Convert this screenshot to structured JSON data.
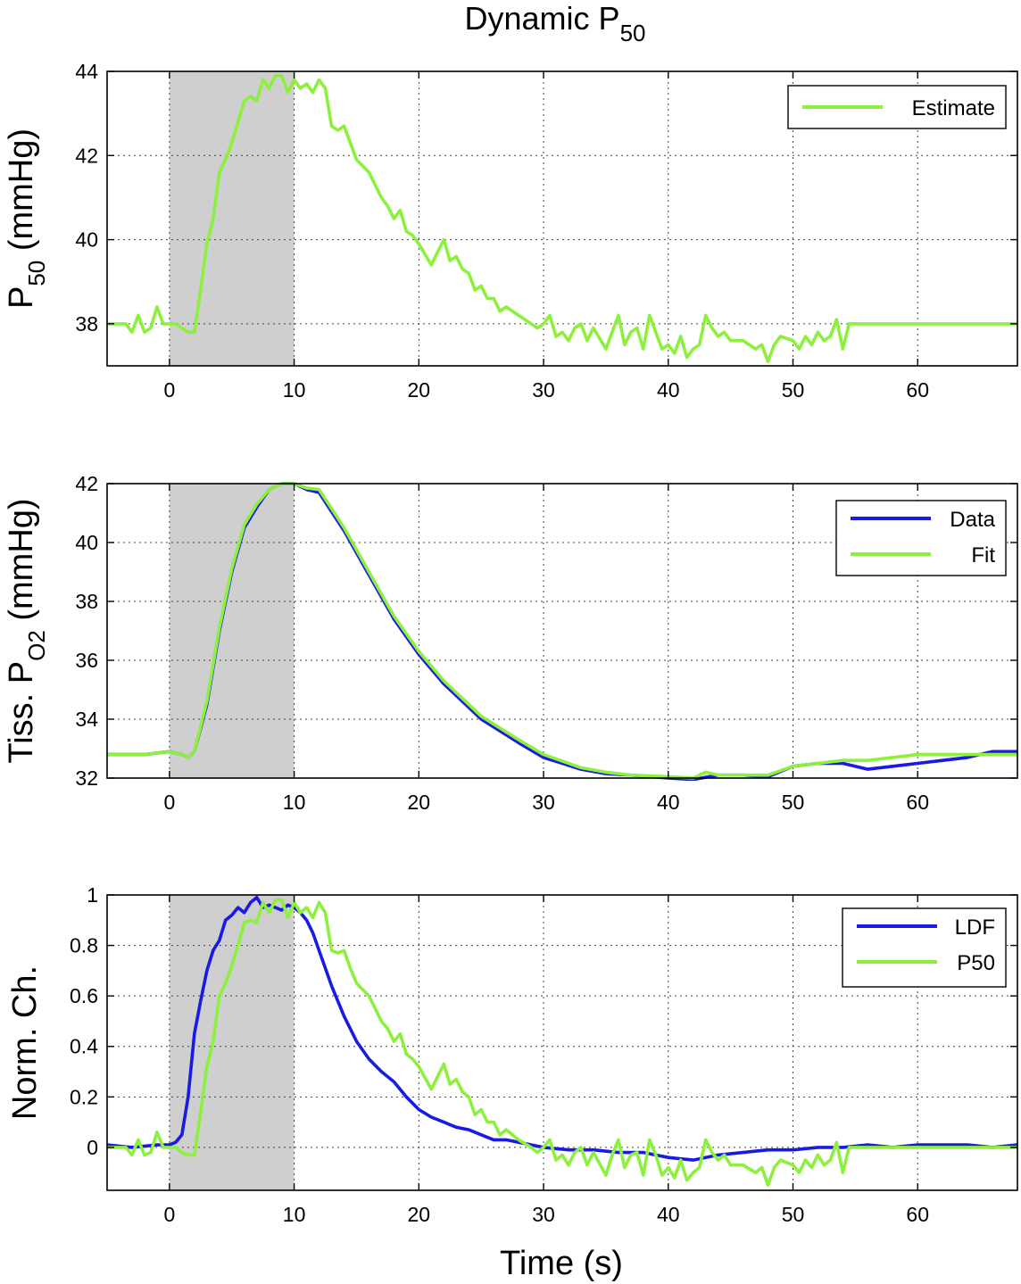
{
  "figure_title": {
    "main": "Dynamic P",
    "sub": "50"
  },
  "xlabel": "Time (s)",
  "colors": {
    "data_blue": "#1a1ae6",
    "estimate_green": "#8cf03c",
    "shade": "#cfcfcf"
  },
  "chart_data": [
    {
      "type": "line",
      "panel": "top",
      "ylabel": {
        "main": "P",
        "sub": "50",
        "rest": " (mmHg)"
      },
      "xlim": [
        -5,
        68
      ],
      "ylim": [
        37,
        44
      ],
      "xticks": [
        0,
        10,
        20,
        30,
        40,
        50,
        60
      ],
      "yticks": [
        38,
        40,
        42,
        44
      ],
      "grid": true,
      "shaded_interval": [
        0,
        10
      ],
      "legend_position": "top-right",
      "series": [
        {
          "name": "Estimate",
          "color": "#8cf03c",
          "x": [
            -5,
            -3.5,
            -3,
            -2.5,
            -2,
            -1.5,
            -1,
            -0.5,
            0,
            0.5,
            1,
            1.5,
            2,
            2.5,
            3,
            3.5,
            4,
            4.5,
            5,
            5.5,
            6,
            6.5,
            7,
            7.5,
            8,
            8.5,
            9,
            9.5,
            10,
            10.5,
            11,
            11.5,
            12,
            12.5,
            13,
            13.5,
            14,
            14.5,
            15,
            16,
            17,
            17.5,
            18,
            18.5,
            19,
            19.5,
            20,
            21,
            21.5,
            22,
            22.5,
            23,
            23.5,
            24,
            24.5,
            25,
            25.5,
            26,
            26.5,
            27,
            28,
            29,
            29.5,
            30,
            30.5,
            31,
            31.5,
            32,
            32.5,
            33,
            33.5,
            34,
            35,
            35.5,
            36,
            36.5,
            37,
            37.5,
            38,
            38.5,
            39,
            39.5,
            40,
            40.5,
            41,
            41.5,
            42,
            42.5,
            43,
            43.5,
            44,
            44.5,
            45,
            46,
            47,
            47.5,
            48,
            48.5,
            49,
            50,
            50.5,
            51,
            51.5,
            52,
            52.5,
            53,
            53.5,
            54,
            54.5,
            55,
            68
          ],
          "y": [
            38,
            38,
            37.8,
            38.2,
            37.8,
            37.9,
            38.4,
            38,
            38,
            38,
            37.9,
            37.8,
            37.8,
            38.8,
            39.9,
            40.5,
            41.6,
            41.9,
            42.3,
            42.8,
            43.3,
            43.4,
            43.3,
            43.8,
            43.6,
            43.9,
            43.9,
            43.5,
            43.8,
            43.6,
            43.7,
            43.5,
            43.8,
            43.6,
            42.7,
            42.6,
            42.7,
            42.3,
            41.9,
            41.6,
            41,
            40.8,
            40.5,
            40.7,
            40.2,
            40.1,
            39.9,
            39.4,
            39.7,
            40,
            39.5,
            39.6,
            39.3,
            39.2,
            38.8,
            38.9,
            38.6,
            38.6,
            38.3,
            38.4,
            38.2,
            38,
            37.9,
            38,
            38.2,
            37.7,
            37.8,
            37.6,
            37.9,
            38,
            37.6,
            37.9,
            37.4,
            37.8,
            38.2,
            37.5,
            37.8,
            37.9,
            37.4,
            38.2,
            37.8,
            37.4,
            37.5,
            37.3,
            37.7,
            37.2,
            37.4,
            37.5,
            38.2,
            37.9,
            37.7,
            37.8,
            37.6,
            37.6,
            37.4,
            37.5,
            37.1,
            37.5,
            37.7,
            37.6,
            37.4,
            37.7,
            37.5,
            37.8,
            37.6,
            37.7,
            38.1,
            37.4,
            38,
            38,
            38
          ]
        }
      ]
    },
    {
      "type": "line",
      "panel": "middle",
      "ylabel": {
        "main": "Tiss. P",
        "sub": "O2",
        "rest": " (mmHg)"
      },
      "xlim": [
        -5,
        68
      ],
      "ylim": [
        32,
        42
      ],
      "xticks": [
        0,
        10,
        20,
        30,
        40,
        50,
        60
      ],
      "yticks": [
        32,
        34,
        36,
        38,
        40,
        42
      ],
      "grid": true,
      "shaded_interval": [
        0,
        10
      ],
      "legend_position": "top-right",
      "series": [
        {
          "name": "Data",
          "color": "#1a1ae6",
          "x": [
            -5,
            -2,
            0,
            1,
            1.5,
            2,
            3,
            4,
            5,
            6,
            7,
            8,
            9,
            10,
            11,
            12,
            14,
            16,
            18,
            20,
            22,
            25,
            28,
            30,
            33,
            35,
            37,
            40,
            42,
            44,
            46,
            48,
            50,
            52,
            54,
            56,
            58,
            60,
            62,
            64,
            66,
            68
          ],
          "y": [
            32.8,
            32.8,
            32.9,
            32.8,
            32.7,
            32.9,
            34.5,
            37,
            39,
            40.5,
            41.2,
            41.8,
            42,
            42,
            41.8,
            41.7,
            40.4,
            38.9,
            37.4,
            36.2,
            35.2,
            34,
            33.2,
            32.7,
            32.3,
            32.15,
            32.1,
            32,
            31.95,
            32.1,
            32.1,
            32.05,
            32.4,
            32.5,
            32.5,
            32.3,
            32.4,
            32.5,
            32.6,
            32.7,
            32.9,
            32.9
          ]
        },
        {
          "name": "Fit",
          "color": "#8cf03c",
          "x": [
            -5,
            -2,
            0,
            1,
            1.5,
            2,
            3,
            4,
            5,
            6,
            7,
            8,
            9,
            10,
            11,
            12,
            14,
            16,
            18,
            20,
            22,
            25,
            28,
            30,
            33,
            35,
            37,
            40,
            42,
            43,
            44,
            46,
            48,
            50,
            52,
            54,
            56,
            58,
            60,
            62,
            64,
            66,
            68
          ],
          "y": [
            32.8,
            32.8,
            32.9,
            32.8,
            32.7,
            32.9,
            34.6,
            37.1,
            39.1,
            40.6,
            41.3,
            41.8,
            42,
            42,
            41.85,
            41.8,
            40.5,
            39,
            37.5,
            36.3,
            35.3,
            34.1,
            33.3,
            32.8,
            32.35,
            32.2,
            32.1,
            32.05,
            32,
            32.2,
            32.1,
            32.1,
            32.1,
            32.4,
            32.5,
            32.6,
            32.6,
            32.7,
            32.8,
            32.8,
            32.8,
            32.8,
            32.8
          ]
        }
      ]
    },
    {
      "type": "line",
      "panel": "bottom",
      "ylabel": {
        "main": "Norm. Ch."
      },
      "xlim": [
        -5,
        68
      ],
      "ylim": [
        -0.17,
        1
      ],
      "xticks": [
        0,
        10,
        20,
        30,
        40,
        50,
        60
      ],
      "yticks": [
        0,
        0.2,
        0.4,
        0.6,
        0.8,
        1
      ],
      "ytick_labels": [
        "0",
        "0.2",
        "0.4",
        "0.6",
        "0.8",
        "1"
      ],
      "grid": true,
      "shaded_interval": [
        0,
        10
      ],
      "legend_position": "top-right",
      "series": [
        {
          "name": "LDF",
          "color": "#1a1ae6",
          "x": [
            -5,
            -3,
            -1,
            0,
            0.5,
            1,
            1.5,
            2,
            2.5,
            3,
            3.5,
            4,
            4.5,
            5,
            5.5,
            6,
            6.5,
            7,
            7.5,
            8,
            8.5,
            9,
            9.5,
            10,
            10.5,
            11,
            11.5,
            12,
            13,
            14,
            15,
            16,
            17,
            18,
            19,
            20,
            21,
            22,
            23,
            24,
            25,
            26,
            27,
            28,
            30,
            32,
            34,
            36,
            38,
            40,
            42,
            44,
            46,
            48,
            50,
            52,
            54,
            56,
            58,
            60,
            62,
            64,
            66,
            68
          ],
          "y": [
            0.01,
            0,
            0.01,
            0.01,
            0.02,
            0.05,
            0.2,
            0.45,
            0.58,
            0.7,
            0.78,
            0.82,
            0.9,
            0.92,
            0.95,
            0.93,
            0.97,
            0.99,
            0.95,
            0.96,
            0.95,
            0.94,
            0.96,
            0.95,
            0.93,
            0.9,
            0.85,
            0.78,
            0.64,
            0.52,
            0.42,
            0.35,
            0.3,
            0.26,
            0.2,
            0.15,
            0.12,
            0.1,
            0.08,
            0.07,
            0.05,
            0.03,
            0.03,
            0.02,
            0.0,
            -0.01,
            -0.01,
            -0.02,
            -0.02,
            -0.04,
            -0.05,
            -0.03,
            -0.02,
            -0.01,
            -0.01,
            0,
            0,
            0.01,
            0,
            0.01,
            0.01,
            0.01,
            0.0,
            0.01
          ]
        },
        {
          "name": "P50",
          "color": "#8cf03c",
          "x": [
            -5,
            -3.5,
            -3,
            -2.5,
            -2,
            -1.5,
            -1,
            -0.5,
            0,
            0.5,
            1,
            1.5,
            2,
            2.5,
            3,
            3.5,
            4,
            4.5,
            5,
            5.5,
            6,
            6.5,
            7,
            7.5,
            8,
            8.5,
            9,
            9.5,
            10,
            10.5,
            11,
            11.5,
            12,
            12.5,
            13,
            13.5,
            14,
            14.5,
            15,
            16,
            17,
            17.5,
            18,
            18.5,
            19,
            19.5,
            20,
            21,
            21.5,
            22,
            22.5,
            23,
            23.5,
            24,
            24.5,
            25,
            25.5,
            26,
            26.5,
            27,
            28,
            29,
            29.5,
            30,
            30.5,
            31,
            31.5,
            32,
            32.5,
            33,
            33.5,
            34,
            35,
            35.5,
            36,
            36.5,
            37,
            37.5,
            38,
            38.5,
            39,
            39.5,
            40,
            40.5,
            41,
            41.5,
            42,
            42.5,
            43,
            43.5,
            44,
            44.5,
            45,
            46,
            47,
            47.5,
            48,
            48.5,
            49,
            50,
            50.5,
            51,
            51.5,
            52,
            52.5,
            53,
            53.5,
            54,
            54.5,
            55,
            68
          ],
          "y": [
            0,
            0,
            -0.03,
            0.03,
            -0.03,
            -0.02,
            0.06,
            0,
            0,
            0,
            -0.02,
            -0.03,
            -0.03,
            0.14,
            0.32,
            0.42,
            0.6,
            0.65,
            0.72,
            0.8,
            0.89,
            0.9,
            0.89,
            0.97,
            0.93,
            0.98,
            0.98,
            0.91,
            0.97,
            0.93,
            0.95,
            0.91,
            0.97,
            0.93,
            0.78,
            0.77,
            0.78,
            0.71,
            0.65,
            0.6,
            0.5,
            0.47,
            0.42,
            0.45,
            0.37,
            0.35,
            0.32,
            0.23,
            0.28,
            0.33,
            0.25,
            0.27,
            0.22,
            0.2,
            0.13,
            0.15,
            0.1,
            0.1,
            0.05,
            0.07,
            0.03,
            0,
            -0.02,
            0,
            0.03,
            -0.05,
            -0.03,
            -0.07,
            -0.02,
            0,
            -0.07,
            -0.02,
            -0.11,
            -0.03,
            0.03,
            -0.08,
            -0.03,
            -0.02,
            -0.11,
            0.03,
            -0.03,
            -0.11,
            -0.08,
            -0.12,
            -0.05,
            -0.13,
            -0.1,
            -0.08,
            0.03,
            -0.02,
            -0.05,
            -0.03,
            -0.07,
            -0.07,
            -0.1,
            -0.08,
            -0.15,
            -0.08,
            -0.05,
            -0.07,
            -0.1,
            -0.05,
            -0.08,
            -0.03,
            -0.07,
            -0.05,
            0.02,
            -0.1,
            0,
            0,
            0
          ]
        }
      ]
    }
  ]
}
